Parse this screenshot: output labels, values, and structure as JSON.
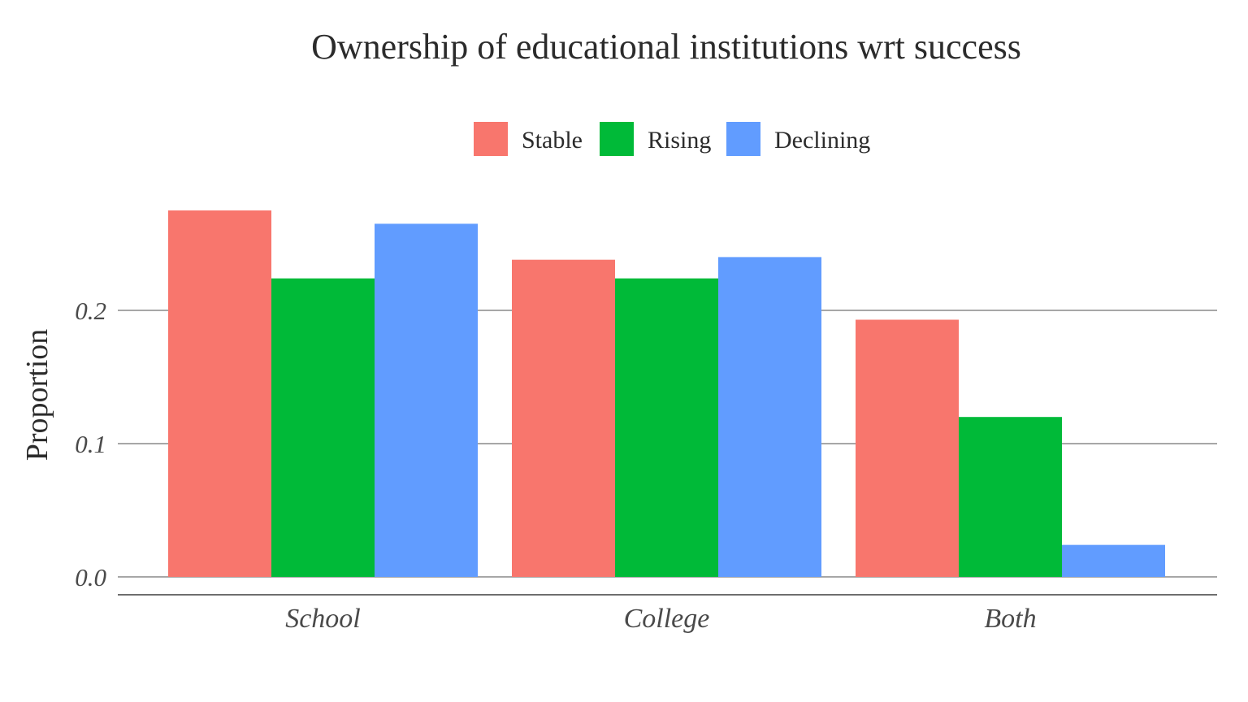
{
  "chart_data": {
    "type": "bar",
    "title": "Ownership of educational institutions wrt success",
    "xlabel": "",
    "ylabel": "Proportion",
    "categories": [
      "School",
      "College",
      "Both"
    ],
    "series": [
      {
        "name": "Stable",
        "color": "#F8766D",
        "values": [
          0.275,
          0.238,
          0.193
        ]
      },
      {
        "name": "Rising",
        "color": "#00BA38",
        "values": [
          0.224,
          0.224,
          0.12
        ]
      },
      {
        "name": "Declining",
        "color": "#619CFF",
        "values": [
          0.265,
          0.24,
          0.024
        ]
      }
    ],
    "yticks": [
      0.0,
      0.1,
      0.2
    ],
    "ytick_labels": [
      "0.0",
      "0.1",
      "0.2"
    ],
    "ylim": [
      0,
      0.29
    ],
    "grid": true,
    "legend_position": "top"
  }
}
